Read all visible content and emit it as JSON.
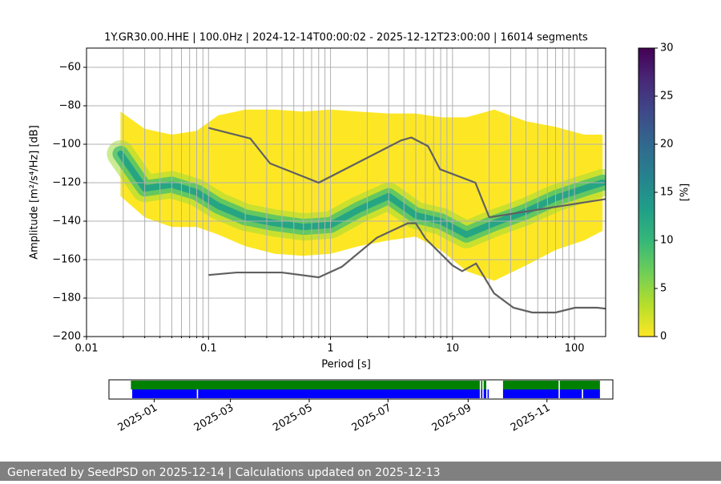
{
  "chart_data": {
    "type": "ppsd",
    "title": "1Y.GR30.00.HHE | 100.0Hz | 2024-12-14T00:00:02 - 2025-12-12T23:00:00 | 16014 segments",
    "xlabel": "Period [s]",
    "ylabel": "Amplitude [m²/s⁴/Hz] [dB]",
    "log_x": true,
    "grid": true,
    "xlim": [
      0.01,
      180
    ],
    "xticks": [
      0.01,
      0.1,
      1,
      10,
      100
    ],
    "xminorticks": [
      0.02,
      0.03,
      0.04,
      0.05,
      0.06,
      0.07,
      0.08,
      0.09,
      0.2,
      0.3,
      0.4,
      0.5,
      0.6,
      0.7,
      0.8,
      0.9,
      2,
      3,
      4,
      5,
      6,
      7,
      8,
      9,
      20,
      30,
      40,
      50,
      60,
      70,
      80,
      90
    ],
    "ylim": [
      -200,
      -50
    ],
    "yticks": [
      {
        "value": -200,
        "label": "−200"
      },
      {
        "value": -180,
        "label": "−180"
      },
      {
        "value": -160,
        "label": "−160"
      },
      {
        "value": -140,
        "label": "−140"
      },
      {
        "value": -120,
        "label": "−120"
      },
      {
        "value": -100,
        "label": "−100"
      },
      {
        "value": -80,
        "label": "−80"
      },
      {
        "value": -60,
        "label": "−60"
      }
    ],
    "density": {
      "x": [
        0.019,
        0.03,
        0.05,
        0.08,
        0.12,
        0.2,
        0.35,
        0.6,
        1,
        1.7,
        3,
        5,
        8,
        13,
        22,
        40,
        70,
        120,
        170
      ],
      "top": [
        -83,
        -92,
        -95,
        -93,
        -85,
        -82,
        -82,
        -83,
        -82,
        -83,
        -84,
        -84,
        -86,
        -86,
        -82,
        -88,
        -91,
        -95,
        -95
      ],
      "bottom": [
        -127,
        -138,
        -143,
        -143,
        -147,
        -153,
        -157,
        -158,
        -157,
        -153,
        -150,
        -148,
        -155,
        -166,
        -171,
        -163,
        -155,
        -150,
        -145
      ],
      "mode": [
        -105,
        -123,
        -121,
        -125,
        -132,
        -138,
        -141,
        -143,
        -142,
        -134,
        -127,
        -137,
        -140,
        -147,
        -141,
        -135,
        -128,
        -123,
        -120
      ],
      "colors": [
        "#fde725",
        "#a0da39",
        "#4ac16d",
        "#1fa187"
      ]
    },
    "series": [
      {
        "color": "#606060",
        "x": [
          0.1,
          0.22,
          0.32,
          0.8,
          3.8,
          4.6,
          6.3,
          7.9,
          15.4,
          20,
          180
        ],
        "values": [
          -91.5,
          -97,
          -110,
          -120,
          -98,
          -96.5,
          -101,
          -113,
          -120,
          -138,
          -128.5
        ]
      },
      {
        "color": "#606060",
        "x": [
          0.1,
          0.17,
          0.4,
          0.8,
          1.24,
          2.4,
          4.3,
          5,
          6,
          10,
          12,
          15.6,
          21.9,
          31.6,
          45,
          70,
          101,
          154,
          180
        ],
        "values": [
          -168,
          -166.7,
          -166.7,
          -169.2,
          -163.7,
          -148.6,
          -141.1,
          -141.1,
          -149,
          -163,
          -166,
          -162,
          -177.5,
          -185,
          -187.5,
          -187.5,
          -185,
          -185,
          -185.5
        ]
      }
    ],
    "colorbar": {
      "label": "[%]",
      "lim": [
        0,
        30
      ],
      "ticks": [
        0,
        5,
        10,
        15,
        20,
        25,
        30
      ],
      "colors": [
        "#fde725",
        "#b5de2b",
        "#6ece58",
        "#35b779",
        "#1f9e89",
        "#26828e",
        "#31688e",
        "#3e4989",
        "#482878",
        "#440154"
      ]
    },
    "coverage": {
      "xlim": [
        "2024-11-27",
        "2025-12-22"
      ],
      "xticks": [
        "2025-01",
        "2025-03",
        "2025-05",
        "2025-07",
        "2025-09",
        "2025-11"
      ],
      "rows": [
        {
          "color": "#008000",
          "segments": [
            [
              "2024-12-14",
              "2025-09-10"
            ],
            [
              "2025-09-11",
              "2025-09-12"
            ],
            [
              "2025-09-13",
              "2025-09-15"
            ],
            [
              "2025-09-28",
              "2025-11-10"
            ],
            [
              "2025-11-11",
              "2025-12-12"
            ]
          ]
        },
        {
          "color": "#0000ff",
          "segments": [
            [
              "2024-12-15",
              "2025-02-03"
            ],
            [
              "2025-02-04",
              "2025-09-10"
            ],
            [
              "2025-09-11",
              "2025-09-12"
            ],
            [
              "2025-09-13",
              "2025-09-15"
            ],
            [
              "2025-09-16",
              "2025-09-17"
            ],
            [
              "2025-09-28",
              "2025-11-10"
            ],
            [
              "2025-11-11",
              "2025-11-28"
            ],
            [
              "2025-11-29",
              "2025-12-12"
            ]
          ]
        }
      ]
    },
    "footer": "Generated by SeedPSD on 2025-12-14 | Calculations updated on 2025-12-13"
  }
}
